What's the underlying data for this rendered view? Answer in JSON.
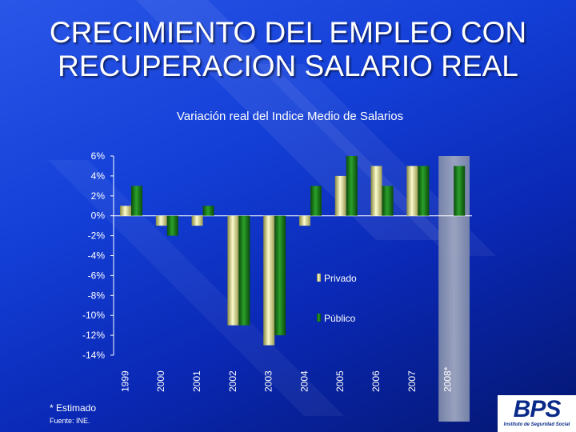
{
  "slide": {
    "title_line1": "CRECIMIENTO DEL EMPLEO CON",
    "title_line2": "RECUPERACION SALARIO REAL",
    "footnote": "* Estimado",
    "source": "Fuente: INE.",
    "logo_text": "BPS",
    "logo_subtitle": "Instituto de Seguridad Social"
  },
  "colors": {
    "privado": "#e8e6a0",
    "publico": "#1a7a1a",
    "highlight_band": "#8a94b0",
    "axis": "#ffffff"
  },
  "chart_data": {
    "type": "bar",
    "title": "Variación real del Indice Medio de Salarios",
    "xlabel": "",
    "ylabel": "",
    "categories": [
      "1999",
      "2000",
      "2001",
      "2002",
      "2003",
      "2004",
      "2005",
      "2006",
      "2007",
      "2008*"
    ],
    "series": [
      {
        "name": "Privado",
        "values": [
          1,
          -1,
          -1,
          -11,
          -13,
          -1,
          4,
          5,
          5,
          null
        ]
      },
      {
        "name": "Público",
        "values": [
          3,
          -2,
          1,
          -11,
          -12,
          3,
          6,
          3,
          5,
          5
        ]
      }
    ],
    "ylim": [
      -14,
      6
    ],
    "yticks": [
      "6%",
      "4%",
      "2%",
      "0%",
      "-2%",
      "-4%",
      "-6%",
      "-8%",
      "-10%",
      "-12%",
      "-14%"
    ],
    "highlight_category": "2008*",
    "legend_position": "center-right",
    "grid": false
  }
}
